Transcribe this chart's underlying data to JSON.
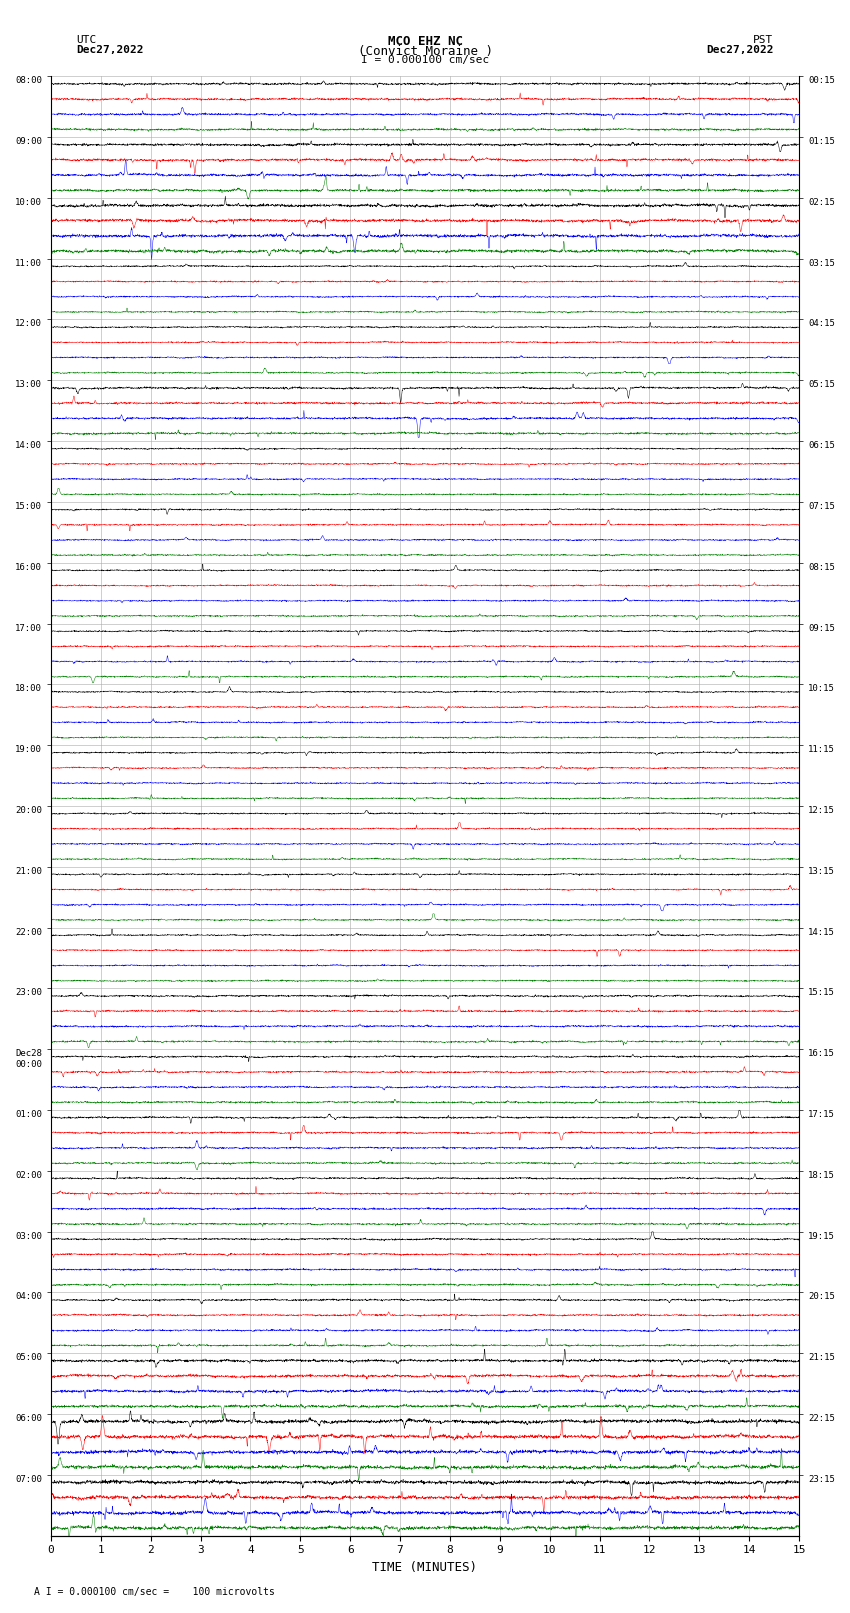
{
  "title_line1": "MCO EHZ NC",
  "title_line2": "(Convict Moraine )",
  "scale_text": "I = 0.000100 cm/sec",
  "utc_label": "UTC",
  "utc_date": "Dec27,2022",
  "pst_label": "PST",
  "pst_date": "Dec27,2022",
  "xlabel": "TIME (MINUTES)",
  "footnote": "A I = 0.000100 cm/sec =    100 microvolts",
  "left_times_utc": [
    "08:00",
    "09:00",
    "10:00",
    "11:00",
    "12:00",
    "13:00",
    "14:00",
    "15:00",
    "16:00",
    "17:00",
    "18:00",
    "19:00",
    "20:00",
    "21:00",
    "22:00",
    "23:00",
    "Dec28\n00:00",
    "01:00",
    "02:00",
    "03:00",
    "04:00",
    "05:00",
    "06:00",
    "07:00"
  ],
  "right_times_pst": [
    "00:15",
    "01:15",
    "02:15",
    "03:15",
    "04:15",
    "05:15",
    "06:15",
    "07:15",
    "08:15",
    "09:15",
    "10:15",
    "11:15",
    "12:15",
    "13:15",
    "14:15",
    "15:15",
    "16:15",
    "17:15",
    "18:15",
    "19:15",
    "20:15",
    "21:15",
    "22:15",
    "23:15"
  ],
  "n_rows": 24,
  "traces_per_row": 4,
  "trace_colors": [
    "black",
    "red",
    "blue",
    "green"
  ],
  "bg_color": "white",
  "x_min": 0,
  "x_max": 15,
  "x_ticks": [
    0,
    1,
    2,
    3,
    4,
    5,
    6,
    7,
    8,
    9,
    10,
    11,
    12,
    13,
    14,
    15
  ],
  "figsize": [
    8.5,
    16.13
  ],
  "dpi": 100
}
